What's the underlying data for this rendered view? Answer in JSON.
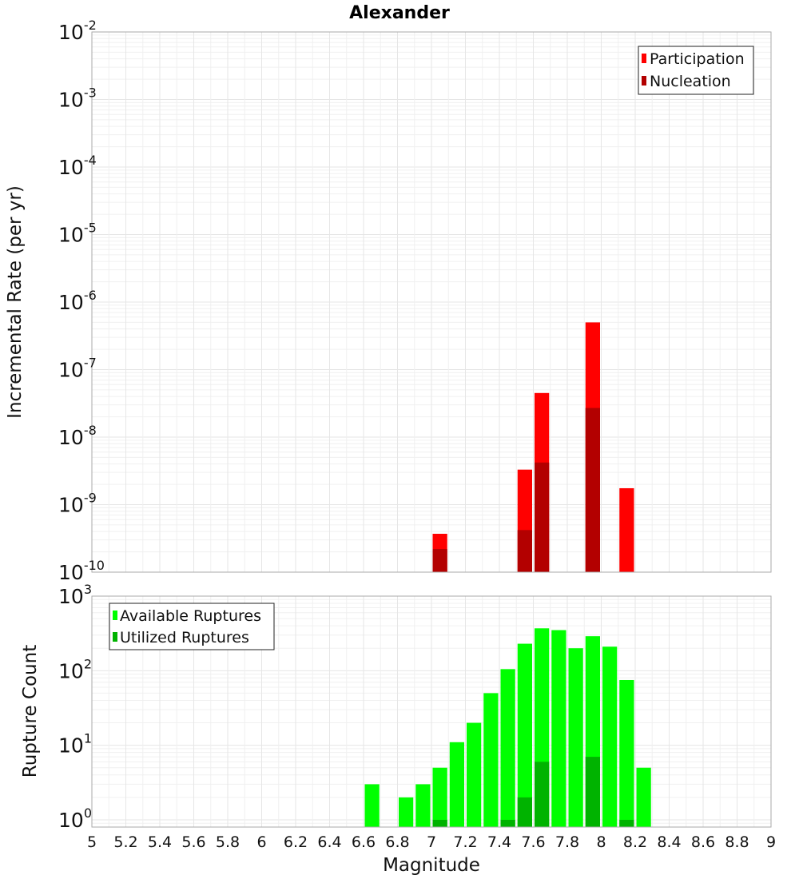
{
  "chart_data": [
    {
      "type": "bar",
      "title": "Alexander",
      "xlabel": "",
      "ylabel": "Incremental Rate (per yr)",
      "yscale": "log",
      "ylim": [
        1e-10,
        0.01
      ],
      "xlim": [
        5,
        9
      ],
      "grid": true,
      "legend_position": "top-right",
      "y_ticks": [
        {
          "base": "10",
          "exp": "-10"
        },
        {
          "base": "10",
          "exp": "-9"
        },
        {
          "base": "10",
          "exp": "-8"
        },
        {
          "base": "10",
          "exp": "-7"
        },
        {
          "base": "10",
          "exp": "-6"
        },
        {
          "base": "10",
          "exp": "-5"
        },
        {
          "base": "10",
          "exp": "-4"
        },
        {
          "base": "10",
          "exp": "-3"
        },
        {
          "base": "10",
          "exp": "-2"
        }
      ],
      "series": [
        {
          "name": "Participation",
          "color": "#ff0000",
          "x": [
            7.05,
            7.55,
            7.65,
            7.95,
            8.15
          ],
          "values": [
            3.7e-10,
            3.3e-09,
            4.5e-08,
            5e-07,
            1.75e-09
          ]
        },
        {
          "name": "Nucleation",
          "color": "#b30000",
          "x": [
            7.05,
            7.55,
            7.65,
            7.95
          ],
          "values": [
            2.2e-10,
            4.2e-10,
            4.2e-09,
            2.7e-08
          ]
        }
      ]
    },
    {
      "type": "bar",
      "title": "",
      "xlabel": "Magnitude",
      "ylabel": "Rupture Count",
      "yscale": "log",
      "ylim": [
        0.8,
        1000
      ],
      "xlim": [
        5,
        9
      ],
      "grid": true,
      "legend_position": "top-left",
      "x_ticks": [
        "5",
        "5.2",
        "5.4",
        "5.6",
        "5.8",
        "6",
        "6.2",
        "6.4",
        "6.6",
        "6.8",
        "7",
        "7.2",
        "7.4",
        "7.6",
        "7.8",
        "8",
        "8.2",
        "8.4",
        "8.6",
        "8.8",
        "9"
      ],
      "y_ticks": [
        {
          "base": "10",
          "exp": "0"
        },
        {
          "base": "10",
          "exp": "1"
        },
        {
          "base": "10",
          "exp": "2"
        },
        {
          "base": "10",
          "exp": "3"
        }
      ],
      "series": [
        {
          "name": "Available Ruptures",
          "color": "#00ff00",
          "x": [
            6.65,
            6.85,
            6.95,
            7.05,
            7.15,
            7.25,
            7.35,
            7.45,
            7.55,
            7.65,
            7.75,
            7.85,
            7.95,
            8.05,
            8.15,
            8.25
          ],
          "values": [
            3,
            2,
            3,
            5,
            11,
            20,
            50,
            105,
            230,
            370,
            350,
            200,
            290,
            210,
            75,
            5
          ]
        },
        {
          "name": "Utilized Ruptures",
          "color": "#00b300",
          "x": [
            7.05,
            7.45,
            7.55,
            7.65,
            7.95,
            8.15
          ],
          "values": [
            1,
            1,
            2,
            6,
            7,
            1
          ]
        }
      ]
    }
  ]
}
